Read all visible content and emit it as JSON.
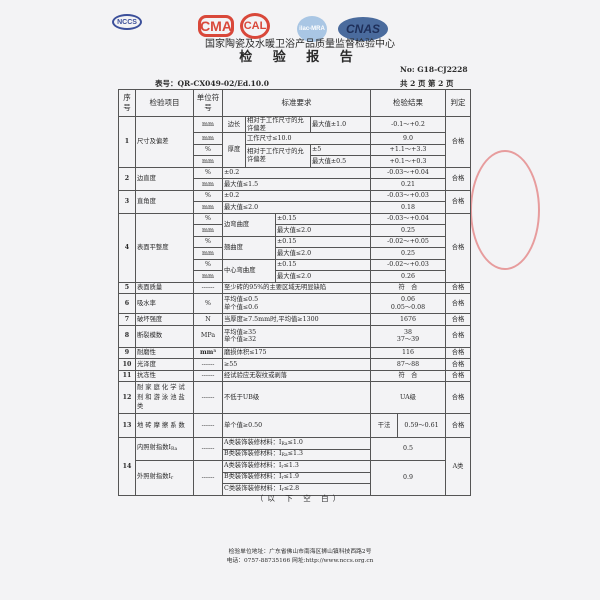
{
  "header": {
    "logos": [
      "NCCS",
      "CMA",
      "CAL",
      "ilac-MRA",
      "CNAS"
    ],
    "org": "国家陶瓷及水暖卫浴产品质量监督检验中心",
    "title": "检 验 报 告",
    "no": "No: G18-CJ2228",
    "form": "表号：QR-CX049-02/Ed.10.0",
    "pages": "共 2 页  第 2 页"
  },
  "columns": {
    "seq": "序号",
    "item": "检验项目",
    "unit": "单位符号",
    "standard": "标准要求",
    "result": "检验结果",
    "judge": "判定"
  },
  "rows": {
    "r1": {
      "seq": "1",
      "item": "尺寸及偏差",
      "judge": "合格",
      "edge": "边长",
      "thick": "厚度",
      "rel": "相对于工作尺寸的允许偏差",
      "u": [
        "mm",
        "mm",
        "%",
        "mm"
      ],
      "s": [
        "最大值±1.0",
        "工作尺寸≤10.0",
        "±5",
        "最大值±0.5"
      ],
      "v": [
        "-0.1～+0.2",
        "9.0",
        "+1.1～+3.3",
        "+0.1～+0.3"
      ]
    },
    "r2": {
      "seq": "2",
      "item": "边直度",
      "judge": "合格",
      "u": [
        "%",
        "mm"
      ],
      "s": [
        "±0.2",
        "最大值≤1.5"
      ],
      "v": [
        "-0.03～+0.04",
        "0.21"
      ]
    },
    "r3": {
      "seq": "3",
      "item": "直角度",
      "judge": "合格",
      "u": [
        "%",
        "mm"
      ],
      "s": [
        "±0.2",
        "最大值≤2.0"
      ],
      "v": [
        "-0.03～+0.03",
        "0.18"
      ]
    },
    "r4": {
      "seq": "4",
      "item": "表面平整度",
      "judge": "合格",
      "sub": [
        "边弯曲度",
        "翘曲度",
        "中心弯曲度"
      ],
      "u": [
        "%",
        "mm",
        "%",
        "mm",
        "%",
        "mm"
      ],
      "s": [
        "±0.15",
        "最大值≤2.0",
        "±0.15",
        "最大值≤2.0",
        "±0.15",
        "最大值≤2.0"
      ],
      "v": [
        "-0.03～+0.04",
        "0.25",
        "-0.02～+0.05",
        "0.25",
        "-0.02～+0.03",
        "0.26"
      ]
    },
    "r5": {
      "seq": "5",
      "item": "表面质量",
      "unit": "------",
      "s": "至少砖的95%的主要区域无明显缺陷",
      "v": "符　合",
      "judge": "合格"
    },
    "r6": {
      "seq": "6",
      "item": "吸水率",
      "unit": "%",
      "s": [
        "平均值≤0.5",
        "单个值≤0.6"
      ],
      "v": [
        "0.06",
        "0.05～0.08"
      ],
      "judge": "合格"
    },
    "r7": {
      "seq": "7",
      "item": "破坏强度",
      "unit": "N",
      "s": "当厚度≥7.5mm时,平均值≥1300",
      "v": "1676",
      "judge": "合格"
    },
    "r8": {
      "seq": "8",
      "item": "断裂模数",
      "unit": "MPa",
      "s": [
        "平均值≥35",
        "单个值≥32"
      ],
      "v": [
        "38",
        "37～39"
      ],
      "judge": "合格"
    },
    "r9": {
      "seq": "9",
      "item": "耐磨性",
      "unit": "mm³",
      "s": "磨损体积≤175",
      "v": "116",
      "judge": "合格"
    },
    "r10": {
      "seq": "10",
      "item": "光泽度",
      "unit": "------",
      "s": "≥55",
      "v": "87～88",
      "judge": "合格"
    },
    "r11": {
      "seq": "11",
      "item": "抗冻性",
      "unit": "------",
      "s": "经试验应无裂纹或剥落",
      "v": "符　合",
      "judge": "合格"
    },
    "r12": {
      "seq": "12",
      "item": "耐家庭化学试剂和游泳池盐类",
      "unit": "------",
      "s": "不低于UB级",
      "v": "UA级",
      "judge": "合格"
    },
    "r13": {
      "seq": "13",
      "item": "地砖摩擦系数",
      "unit": "------",
      "s": "单个值≥0.50",
      "method": "干法",
      "v": "0.59～0.61",
      "judge": "合格"
    },
    "r14": {
      "seq": "14",
      "judge": "A类",
      "unit": "------",
      "internal": {
        "label": "内照射指数I",
        "sub": "Ra",
        "lines": [
          {
            "pre": "A类装饰装修材料：I",
            "sub": "Ra",
            "post": "≤1.0"
          },
          {
            "pre": "B类装饰装修材料：I",
            "sub": "Ra",
            "post": "≤1.3"
          }
        ],
        "v": "0.5"
      },
      "external": {
        "label": "外照射指数I",
        "sub": "r",
        "lines": [
          {
            "pre": "A类装饰装修材料：I",
            "sub": "r",
            "post": "≤1.3"
          },
          {
            "pre": "B类装饰装修材料：I",
            "sub": "r",
            "post": "≤1.9"
          },
          {
            "pre": "C类装饰装修材料：I",
            "sub": "r",
            "post": "≤2.8"
          }
        ],
        "v": "0.9"
      }
    }
  },
  "blank": "（以 下 空 白）",
  "footer": {
    "address": "检验单位地址：广东省佛山市南海区狮山镇科技西路2号",
    "contact": "电话：0757-88735166  网址:http://www.nccs.org.cn"
  },
  "colors": {
    "logo_red": "#d9483a",
    "logo_blue": "#3b4f9a",
    "stamp": "#dc4646"
  }
}
